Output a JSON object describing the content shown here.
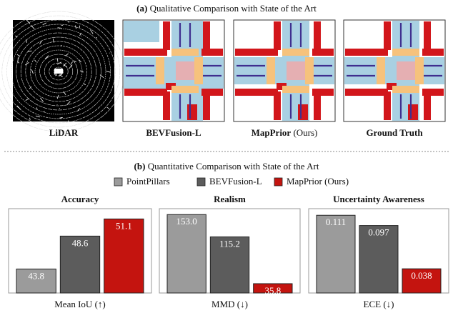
{
  "figure": {
    "part_a": {
      "label": "(a)",
      "title": "Qualitative Comparison with State of the Art"
    },
    "panels": [
      {
        "name": "LiDAR"
      },
      {
        "name": "BEVFusion-L"
      },
      {
        "name": "MapPrior",
        "suffix": "(Ours)"
      },
      {
        "name": "Ground Truth"
      }
    ],
    "part_b": {
      "label": "(b)",
      "title": "Quantitative Comparison with State of the Art"
    },
    "legend": [
      {
        "name": "PointPillars",
        "color": "#9b9b9b"
      },
      {
        "name": "BEVFusion-L",
        "color": "#5c5c5c"
      },
      {
        "name": "MapPrior",
        "suffix": "(Ours)",
        "color": "#c4140f"
      }
    ]
  },
  "chart_data": [
    {
      "type": "bar",
      "title": "Accuracy",
      "xlabel": "Mean IoU (↑)",
      "values": [
        43.8,
        48.6,
        51.1
      ],
      "ylim": [
        40.3,
        52.6
      ]
    },
    {
      "type": "bar",
      "title": "Realism",
      "xlabel": "MMD (↓)",
      "values": [
        153.0,
        115.2,
        35.8
      ],
      "value_labels": [
        "153.0",
        "115.2",
        "35.8"
      ],
      "ylim": [
        20,
        163
      ]
    },
    {
      "type": "bar",
      "title": "Uncertainty Awareness",
      "xlabel": "ECE (↓)",
      "values": [
        0.111,
        0.097,
        0.038
      ],
      "ylim": [
        0.005,
        0.12
      ]
    }
  ]
}
